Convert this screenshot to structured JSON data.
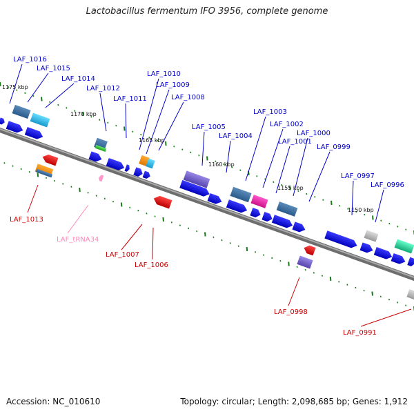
{
  "title": "Lactobacillus fermentum IFO 3956, complete genome",
  "accession": "Accession: NC_010610",
  "topology": "Topology: circular; Length: 2,098,685 bp; Genes: 1,912",
  "colors": {
    "backbone": "#8a8a8a",
    "tick": "#1a7a1a",
    "forward_label": "#0000cc",
    "reverse_label": "#cc0000",
    "trna_label": "#ff88bb",
    "cds": "#1010ee"
  },
  "scale_labels": [
    "1175 kbp",
    "1170 kbp",
    "1165 kbp",
    "1160 kbp",
    "1155 kbp",
    "1150 kbp"
  ],
  "forward_labels": [
    "LAF_1016",
    "LAF_1015",
    "LAF_1014",
    "LAF_1012",
    "LAF_1011",
    "LAF_1010",
    "LAF_1009",
    "LAF_1008",
    "LAF_1005",
    "LAF_1004",
    "LAF_1003",
    "LAF_1002",
    "LAF_1001",
    "LAF_1000",
    "LAF_0999",
    "LAF_0997",
    "LAF_0996"
  ],
  "reverse_labels": [
    "LAF_1013",
    "LAF_tRNA34",
    "LAF_1007",
    "LAF_1006",
    "LAF_0998",
    "LAF_0991"
  ]
}
